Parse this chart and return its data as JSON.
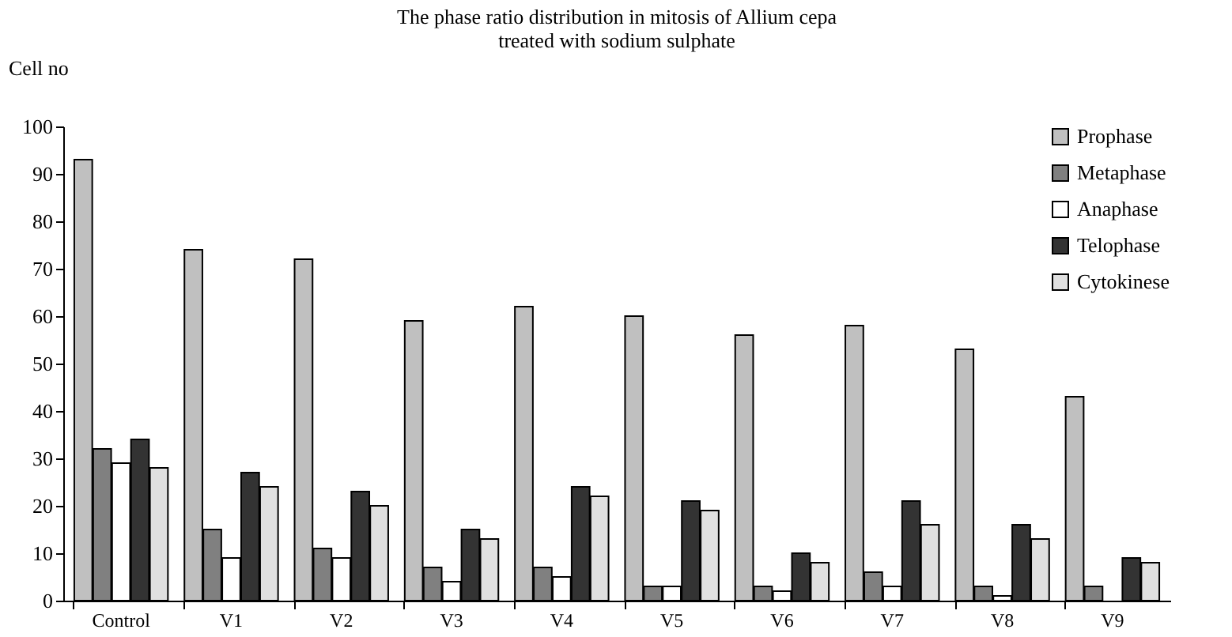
{
  "chart_data": {
    "type": "bar",
    "title": [
      "The phase ratio distribution in mitosis of Allium cepa",
      "treated with sodium sulphate"
    ],
    "ylabel": "Cell no",
    "categories": [
      "Control",
      "V1",
      "V2",
      "V3",
      "V4",
      "V5",
      "V6",
      "V7",
      "V8",
      "V9"
    ],
    "series": [
      {
        "name": "Prophase",
        "color": "#c0c0c0",
        "values": [
          93,
          74,
          72,
          59,
          62,
          60,
          56,
          58,
          53,
          43
        ]
      },
      {
        "name": "Metaphase",
        "color": "#808080",
        "values": [
          32,
          15,
          11,
          7,
          7,
          3,
          3,
          6,
          3,
          3
        ]
      },
      {
        "name": "Anaphase",
        "color": "#ffffff",
        "values": [
          29,
          9,
          9,
          4,
          5,
          3,
          2,
          3,
          1,
          null
        ]
      },
      {
        "name": "Telophase",
        "color": "#333333",
        "values": [
          34,
          27,
          23,
          15,
          24,
          21,
          10,
          21,
          16,
          9
        ]
      },
      {
        "name": "Cytokinese",
        "color": "#e0e0e0",
        "values": [
          28,
          24,
          20,
          13,
          22,
          19,
          8,
          16,
          13,
          8
        ]
      }
    ],
    "ylim": [
      0,
      100
    ],
    "yticks": [
      0,
      10,
      20,
      30,
      40,
      50,
      60,
      70,
      80,
      90,
      100
    ],
    "grid": false,
    "legend": "top right"
  }
}
